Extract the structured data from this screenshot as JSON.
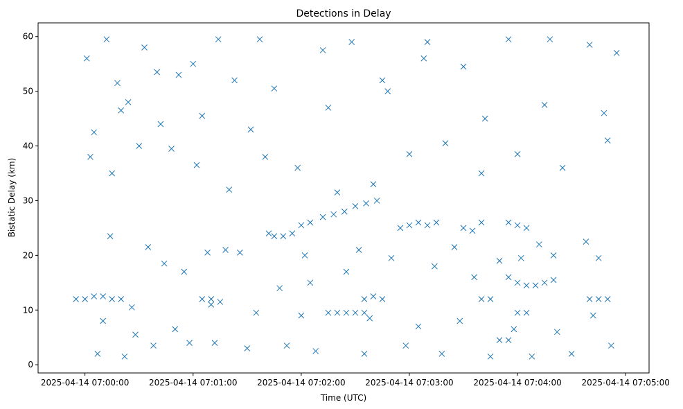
{
  "chart_data": {
    "type": "scatter",
    "title": "Detections in Delay",
    "xlabel": "Time (UTC)",
    "ylabel": "Bistatic Delay (km)",
    "x_ticks": [
      "2025-04-14 07:00:00",
      "2025-04-14 07:01:00",
      "2025-04-14 07:02:00",
      "2025-04-14 07:03:00",
      "2025-04-14 07:04:00",
      "2025-04-14 07:05:00"
    ],
    "y_ticks": [
      0,
      10,
      20,
      30,
      40,
      50,
      60
    ],
    "xlim": [
      "2025-04-14 06:59:34",
      "2025-04-14 07:05:13"
    ],
    "ylim": [
      -1.5,
      62.5
    ],
    "marker": "x",
    "grid": false,
    "series": [
      {
        "color": "#1f77b4",
        "x": [
          "2025-04-14 07:00:01",
          "2025-04-14 07:00:05",
          "2025-04-14 07:00:12",
          "2025-04-14 07:00:18",
          "2025-04-14 07:00:24",
          "2025-04-14 07:00:33",
          "2025-04-14 07:00:40",
          "2025-04-14 07:00:52",
          "2025-04-14 07:01:05",
          "2025-04-14 07:01:14",
          "2025-04-14 07:01:23",
          "2025-04-14 07:01:37",
          "2025-04-14 07:01:45",
          "2025-04-14 07:02:12",
          "2025-04-14 07:02:28",
          "2025-04-14 07:02:45",
          "2025-04-14 07:03:10",
          "2025-04-14 07:03:30",
          "2025-04-14 07:03:55",
          "2025-04-14 07:04:18",
          "2025-04-14 07:04:40",
          "2025-04-14 07:04:55",
          "2025-04-14 07:00:03",
          "2025-04-14 07:00:15",
          "2025-04-14 07:00:30",
          "2025-04-14 07:00:48",
          "2025-04-14 07:01:02",
          "2025-04-14 07:01:20",
          "2025-04-14 07:01:40",
          "2025-04-14 07:01:58",
          "2025-04-14 07:02:20",
          "2025-04-14 07:02:40",
          "2025-04-14 07:03:00",
          "2025-04-14 07:03:20",
          "2025-04-14 07:03:40",
          "2025-04-14 07:04:00",
          "2025-04-14 07:04:25",
          "2025-04-14 07:04:50",
          "2025-04-14 07:00:07",
          "2025-04-14 07:00:22",
          "2025-04-14 07:00:38",
          "2025-04-14 07:00:58",
          "2025-04-14 07:01:12",
          "2025-04-14 07:01:30",
          "2025-04-14 07:01:52",
          "2025-04-14 07:02:08",
          "2025-04-14 07:02:35",
          "2025-04-14 07:02:58",
          "2025-04-14 07:03:18",
          "2025-04-14 07:03:45",
          "2025-04-14 07:04:08",
          "2025-04-14 07:04:30",
          "2025-04-14 07:04:52",
          "2025-04-14 07:00:10",
          "2025-04-14 07:00:28",
          "2025-04-14 07:00:44",
          "2025-04-14 07:01:08",
          "2025-04-14 07:01:26",
          "2025-04-14 07:01:48",
          "2025-04-14 07:02:05",
          "2025-04-14 07:02:25",
          "2025-04-14 07:02:50",
          "2025-04-14 07:03:14",
          "2025-04-14 07:03:36",
          "2025-04-14 07:04:02",
          "2025-04-14 07:04:20",
          "2025-04-14 07:04:45",
          "2025-04-14 07:00:14",
          "2025-04-14 07:00:35",
          "2025-04-14 07:00:55",
          "2025-04-14 07:01:18",
          "2025-04-14 07:01:42",
          "2025-04-14 07:02:02",
          "2025-04-14 07:02:32",
          "2025-04-14 07:02:55",
          "2025-04-14 07:03:25",
          "2025-04-14 07:03:50",
          "2025-04-14 07:04:12",
          "2025-04-14 07:04:38",
          "2025-04-14 07:00:20",
          "2025-04-14 07:00:42",
          "2025-04-14 07:01:00",
          "2025-04-14 07:01:32",
          "2025-04-14 07:02:15",
          "2025-04-14 07:02:48",
          "2025-04-14 07:03:08",
          "2025-04-14 07:03:42",
          "2025-04-14 07:04:15",
          "2025-04-14 07:04:48",
          "2025-04-14 07:00:26",
          "2025-04-14 07:00:50",
          "2025-04-14 07:01:10",
          "2025-04-14 07:01:35",
          "2025-04-14 07:02:00",
          "2025-04-14 07:02:38",
          "2025-04-14 07:03:05",
          "2025-04-14 07:03:28",
          "2025-04-14 07:03:58",
          "2025-04-14 07:04:22",
          "2025-04-14 07:04:42"
        ],
        "y": [
          56,
          42.5,
          59.5,
          51.5,
          48,
          58,
          53.5,
          53,
          45.5,
          59.5,
          52,
          59.5,
          50.5,
          57.5,
          59,
          52,
          59,
          54.5,
          59.5,
          59.5,
          58.5,
          57,
          38,
          35,
          40,
          39.5,
          36.5,
          32,
          38,
          36,
          31.5,
          33,
          38.5,
          40.5,
          35,
          38.5,
          36,
          41,
          2,
          1.5,
          3.5,
          4,
          4,
          3,
          3.5,
          2.5,
          2,
          3.5,
          2,
          1.5,
          1.5,
          2,
          3.5,
          8,
          5.5,
          18.5,
          20.5,
          20.5,
          14,
          15,
          17,
          19.5,
          18,
          16,
          19.5,
          20,
          19.5,
          23.5,
          21.5,
          17,
          21,
          24,
          20,
          21,
          25,
          21.5,
          19,
          22,
          22.5,
          46.5,
          44,
          55,
          43,
          47,
          50,
          56,
          45,
          47.5,
          46,
          10.5,
          6.5,
          11,
          9.5,
          9,
          8.5,
          7,
          8,
          6.5,
          6,
          9
        ]
      },
      {
        "color": "#1f77b4",
        "x": [
          "2025-04-14 06:59:55",
          "2025-04-14 07:00:00",
          "2025-04-14 07:00:05",
          "2025-04-14 07:00:10",
          "2025-04-14 07:00:15",
          "2025-04-14 07:00:20",
          "2025-04-14 07:01:05",
          "2025-04-14 07:01:10",
          "2025-04-14 07:01:15",
          "2025-04-14 07:02:35",
          "2025-04-14 07:02:40",
          "2025-04-14 07:02:45",
          "2025-04-14 07:03:40",
          "2025-04-14 07:03:45",
          "2025-04-14 07:04:40",
          "2025-04-14 07:04:45",
          "2025-04-14 07:04:50"
        ],
        "y": [
          12,
          12,
          12.5,
          12.5,
          12,
          12,
          12,
          12,
          11.5,
          12,
          12.5,
          12,
          12,
          12,
          12,
          12,
          12
        ]
      },
      {
        "color": "#1f77b4",
        "x": [
          "2025-04-14 07:01:45",
          "2025-04-14 07:01:50",
          "2025-04-14 07:01:55",
          "2025-04-14 07:02:00",
          "2025-04-14 07:02:05",
          "2025-04-14 07:03:00",
          "2025-04-14 07:03:05",
          "2025-04-14 07:03:10",
          "2025-04-14 07:03:15",
          "2025-04-14 07:03:30",
          "2025-04-14 07:03:35",
          "2025-04-14 07:03:40",
          "2025-04-14 07:03:55",
          "2025-04-14 07:04:00",
          "2025-04-14 07:04:05"
        ],
        "y": [
          23.5,
          23.5,
          24,
          25.5,
          26,
          25.5,
          26,
          25.5,
          26,
          25,
          24.5,
          26,
          26,
          25.5,
          25
        ]
      },
      {
        "color": "#1f77b4",
        "x": [
          "2025-04-14 07:02:12",
          "2025-04-14 07:02:18",
          "2025-04-14 07:02:24",
          "2025-04-14 07:02:30",
          "2025-04-14 07:02:36",
          "2025-04-14 07:02:42"
        ],
        "y": [
          27,
          27.5,
          28,
          29,
          29.5,
          30
        ]
      },
      {
        "color": "#1f77b4",
        "x": [
          "2025-04-14 07:02:15",
          "2025-04-14 07:02:20",
          "2025-04-14 07:02:25",
          "2025-04-14 07:02:30",
          "2025-04-14 07:02:35",
          "2025-04-14 07:03:50",
          "2025-04-14 07:03:55",
          "2025-04-14 07:04:00",
          "2025-04-14 07:04:05"
        ],
        "y": [
          9.5,
          9.5,
          9.5,
          9.5,
          9.5,
          4.5,
          4.5,
          9.5,
          9.5
        ]
      },
      {
        "color": "#1f77b4",
        "x": [
          "2025-04-14 07:03:55",
          "2025-04-14 07:04:00",
          "2025-04-14 07:04:05",
          "2025-04-14 07:04:10",
          "2025-04-14 07:04:15",
          "2025-04-14 07:04:20"
        ],
        "y": [
          16,
          15,
          14.5,
          14.5,
          15,
          15.5
        ]
      }
    ]
  }
}
